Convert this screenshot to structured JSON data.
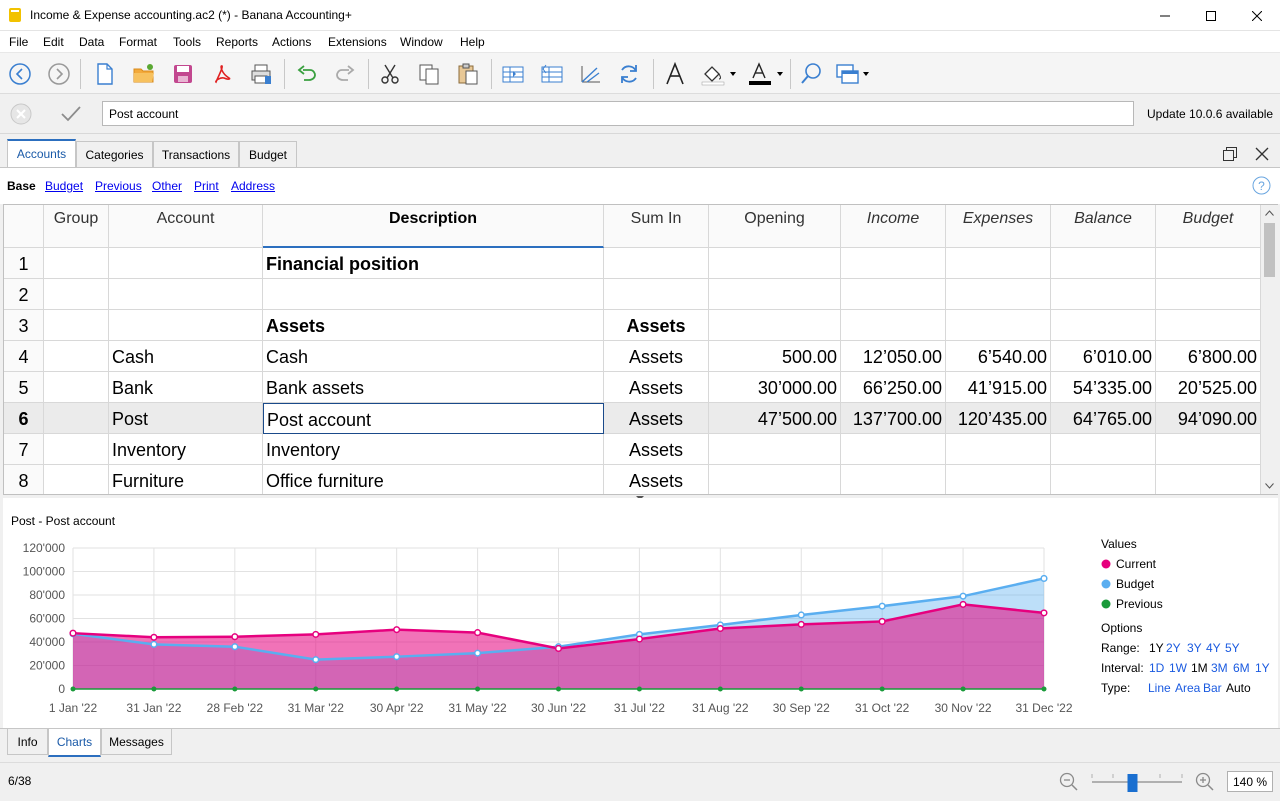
{
  "window": {
    "title": "Income & Expense accounting.ac2 (*) - Banana Accounting+"
  },
  "menu": [
    "File",
    "Edit",
    "Data",
    "Format",
    "Tools",
    "Reports",
    "Actions",
    "Extensions",
    "Window",
    "Help"
  ],
  "editbar": {
    "value": "Post account",
    "update_notice": "Update 10.0.6 available"
  },
  "tabs": [
    "Accounts",
    "Categories",
    "Transactions",
    "Budget"
  ],
  "views": [
    "Base",
    "Budget",
    "Previous",
    "Other",
    "Print",
    "Address"
  ],
  "table": {
    "columns": [
      "Group",
      "Account",
      "Description",
      "Sum In",
      "Opening",
      "Income",
      "Expenses",
      "Balance",
      "Budget"
    ],
    "rows": [
      {
        "n": "1",
        "group": "",
        "account": "",
        "description": "Financial position",
        "sumin": "",
        "opening": "",
        "income": "",
        "expenses": "",
        "balance": "",
        "budget": ""
      },
      {
        "n": "2",
        "group": "",
        "account": "",
        "description": "",
        "sumin": "",
        "opening": "",
        "income": "",
        "expenses": "",
        "balance": "",
        "budget": ""
      },
      {
        "n": "3",
        "group": "",
        "account": "",
        "description": "Assets",
        "sumin": "Assets",
        "opening": "",
        "income": "",
        "expenses": "",
        "balance": "",
        "budget": ""
      },
      {
        "n": "4",
        "group": "",
        "account": "Cash",
        "description": "Cash",
        "sumin": "Assets",
        "opening": "500.00",
        "income": "12’050.00",
        "expenses": "6’540.00",
        "balance": "6’010.00",
        "budget": "6’800.00"
      },
      {
        "n": "5",
        "group": "",
        "account": "Bank",
        "description": "Bank assets",
        "sumin": "Assets",
        "opening": "30’000.00",
        "income": "66’250.00",
        "expenses": "41’915.00",
        "balance": "54’335.00",
        "budget": "20’525.00"
      },
      {
        "n": "6",
        "group": "",
        "account": "Post",
        "description": "Post account",
        "sumin": "Assets",
        "opening": "47’500.00",
        "income": "137’700.00",
        "expenses": "120’435.00",
        "balance": "64’765.00",
        "budget": "94’090.00"
      },
      {
        "n": "7",
        "group": "",
        "account": "Inventory",
        "description": "Inventory",
        "sumin": "Assets",
        "opening": "",
        "income": "",
        "expenses": "",
        "balance": "",
        "budget": ""
      },
      {
        "n": "8",
        "group": "",
        "account": "Furniture",
        "description": "Office furniture",
        "sumin": "Assets",
        "opening": "",
        "income": "",
        "expenses": "",
        "balance": "",
        "budget": ""
      }
    ]
  },
  "chart_data": {
    "type": "area",
    "title": "Post - Post account",
    "categories": [
      "1 Jan '22",
      "31 Jan '22",
      "28 Feb '22",
      "31 Mar '22",
      "30 Apr '22",
      "31 May '22",
      "30 Jun '22",
      "31 Jul '22",
      "31 Aug '22",
      "30 Sep '22",
      "31 Oct '22",
      "30 Nov '22",
      "31 Dec '22"
    ],
    "ylim": [
      0,
      120000
    ],
    "yticks": [
      "0",
      "20'000",
      "40'000",
      "60'000",
      "80'000",
      "100'000",
      "120'000"
    ],
    "series": [
      {
        "name": "Current",
        "color": "#e6007e",
        "values": [
          47500,
          44000,
          44500,
          46500,
          50500,
          48000,
          34500,
          42500,
          51500,
          55000,
          57500,
          72000,
          64765
        ]
      },
      {
        "name": "Budget",
        "color": "#5aaef0",
        "values": [
          47000,
          38000,
          36000,
          25000,
          27500,
          30500,
          36000,
          46500,
          54500,
          63000,
          70500,
          79000,
          94090
        ]
      },
      {
        "name": "Previous",
        "color": "#1a9a3a",
        "values": [
          0,
          0,
          0,
          0,
          0,
          0,
          0,
          0,
          0,
          0,
          0,
          0,
          0
        ]
      }
    ]
  },
  "legend": {
    "values_label": "Values",
    "items": [
      "Current",
      "Budget",
      "Previous"
    ],
    "options_label": "Options",
    "range_label": "Range:",
    "range": [
      "1Y",
      "2Y",
      "3Y",
      "4Y",
      "5Y"
    ],
    "interval_label": "Interval:",
    "interval": [
      "1D",
      "1W",
      "1M",
      "3M",
      "6M",
      "1Y"
    ],
    "type_label": "Type:",
    "type": [
      "Line",
      "Area",
      "Bar",
      "Auto"
    ]
  },
  "bottom_tabs": [
    "Info",
    "Charts",
    "Messages"
  ],
  "status": {
    "position": "6/38",
    "zoom": "140 %",
    "zoom_level": 0.45
  }
}
